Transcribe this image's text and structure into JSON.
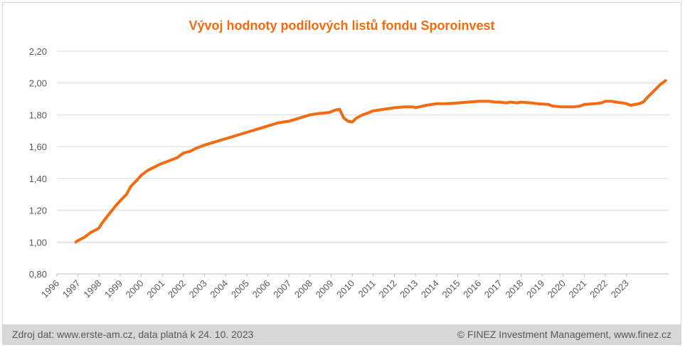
{
  "chart_data": {
    "type": "line",
    "title": "Vývoj hodnoty podílových listů fondu Sporoinvest",
    "xlabel": "",
    "ylabel": "",
    "ylim": [
      0.8,
      2.2
    ],
    "xlim": [
      1996.0,
      2023.85
    ],
    "y_ticks": [
      "0,80",
      "1,00",
      "1,20",
      "1,40",
      "1,60",
      "1,80",
      "2,00",
      "2,20"
    ],
    "x_ticks": [
      "1996",
      "1997",
      "1998",
      "1999",
      "2000",
      "2001",
      "2002",
      "2003",
      "2004",
      "2005",
      "2006",
      "2007",
      "2008",
      "2009",
      "2010",
      "2011",
      "2012",
      "2013",
      "2014",
      "2015",
      "2016",
      "2017",
      "2018",
      "2019",
      "2020",
      "2021",
      "2022",
      "2023"
    ],
    "grid": "horizontal",
    "series": [
      {
        "color": "#f26b11",
        "points": [
          [
            1996.9,
            1.0
          ],
          [
            1997.0,
            1.01
          ],
          [
            1997.3,
            1.03
          ],
          [
            1997.6,
            1.06
          ],
          [
            1997.9,
            1.08
          ],
          [
            1998.0,
            1.09
          ],
          [
            1998.2,
            1.13
          ],
          [
            1998.5,
            1.18
          ],
          [
            1998.8,
            1.23
          ],
          [
            1999.0,
            1.26
          ],
          [
            1999.3,
            1.3
          ],
          [
            1999.5,
            1.35
          ],
          [
            1999.8,
            1.39
          ],
          [
            2000.0,
            1.42
          ],
          [
            2000.3,
            1.45
          ],
          [
            2000.6,
            1.47
          ],
          [
            2000.9,
            1.49
          ],
          [
            2001.3,
            1.51
          ],
          [
            2001.7,
            1.53
          ],
          [
            2002.0,
            1.56
          ],
          [
            2002.3,
            1.57
          ],
          [
            2002.6,
            1.59
          ],
          [
            2003.0,
            1.61
          ],
          [
            2003.5,
            1.63
          ],
          [
            2004.0,
            1.65
          ],
          [
            2004.5,
            1.67
          ],
          [
            2005.0,
            1.69
          ],
          [
            2005.5,
            1.71
          ],
          [
            2006.0,
            1.73
          ],
          [
            2006.5,
            1.75
          ],
          [
            2007.0,
            1.76
          ],
          [
            2007.5,
            1.78
          ],
          [
            2008.0,
            1.8
          ],
          [
            2008.5,
            1.81
          ],
          [
            2008.9,
            1.815
          ],
          [
            2009.2,
            1.83
          ],
          [
            2009.4,
            1.835
          ],
          [
            2009.6,
            1.78
          ],
          [
            2009.8,
            1.76
          ],
          [
            2010.0,
            1.755
          ],
          [
            2010.2,
            1.78
          ],
          [
            2010.5,
            1.8
          ],
          [
            2010.8,
            1.815
          ],
          [
            2011.0,
            1.825
          ],
          [
            2011.5,
            1.835
          ],
          [
            2012.0,
            1.845
          ],
          [
            2012.5,
            1.85
          ],
          [
            2012.9,
            1.85
          ],
          [
            2013.0,
            1.845
          ],
          [
            2013.5,
            1.86
          ],
          [
            2014.0,
            1.87
          ],
          [
            2014.5,
            1.87
          ],
          [
            2015.0,
            1.875
          ],
          [
            2015.5,
            1.88
          ],
          [
            2016.0,
            1.885
          ],
          [
            2016.5,
            1.885
          ],
          [
            2016.8,
            1.88
          ],
          [
            2017.0,
            1.88
          ],
          [
            2017.3,
            1.875
          ],
          [
            2017.5,
            1.88
          ],
          [
            2017.8,
            1.875
          ],
          [
            2018.0,
            1.88
          ],
          [
            2018.5,
            1.875
          ],
          [
            2018.8,
            1.87
          ],
          [
            2019.3,
            1.865
          ],
          [
            2019.5,
            1.855
          ],
          [
            2020.0,
            1.85
          ],
          [
            2020.5,
            1.85
          ],
          [
            2020.8,
            1.855
          ],
          [
            2021.0,
            1.865
          ],
          [
            2021.5,
            1.87
          ],
          [
            2021.8,
            1.875
          ],
          [
            2022.0,
            1.885
          ],
          [
            2022.3,
            1.885
          ],
          [
            2022.5,
            1.88
          ],
          [
            2022.8,
            1.875
          ],
          [
            2023.0,
            1.87
          ],
          [
            2023.2,
            1.86
          ],
          [
            2023.4,
            1.865
          ],
          [
            2023.6,
            1.87
          ],
          [
            2023.8,
            1.88
          ],
          [
            2024.0,
            1.91
          ],
          [
            2024.3,
            1.95
          ],
          [
            2024.6,
            1.99
          ],
          [
            2024.85,
            2.015
          ]
        ]
      }
    ]
  },
  "footer": {
    "source": "Zdroj dat: www.erste-am.cz, data platná k 24. 10. 2023",
    "copyright": "© FINEZ Investment Management, www.finez.cz"
  }
}
